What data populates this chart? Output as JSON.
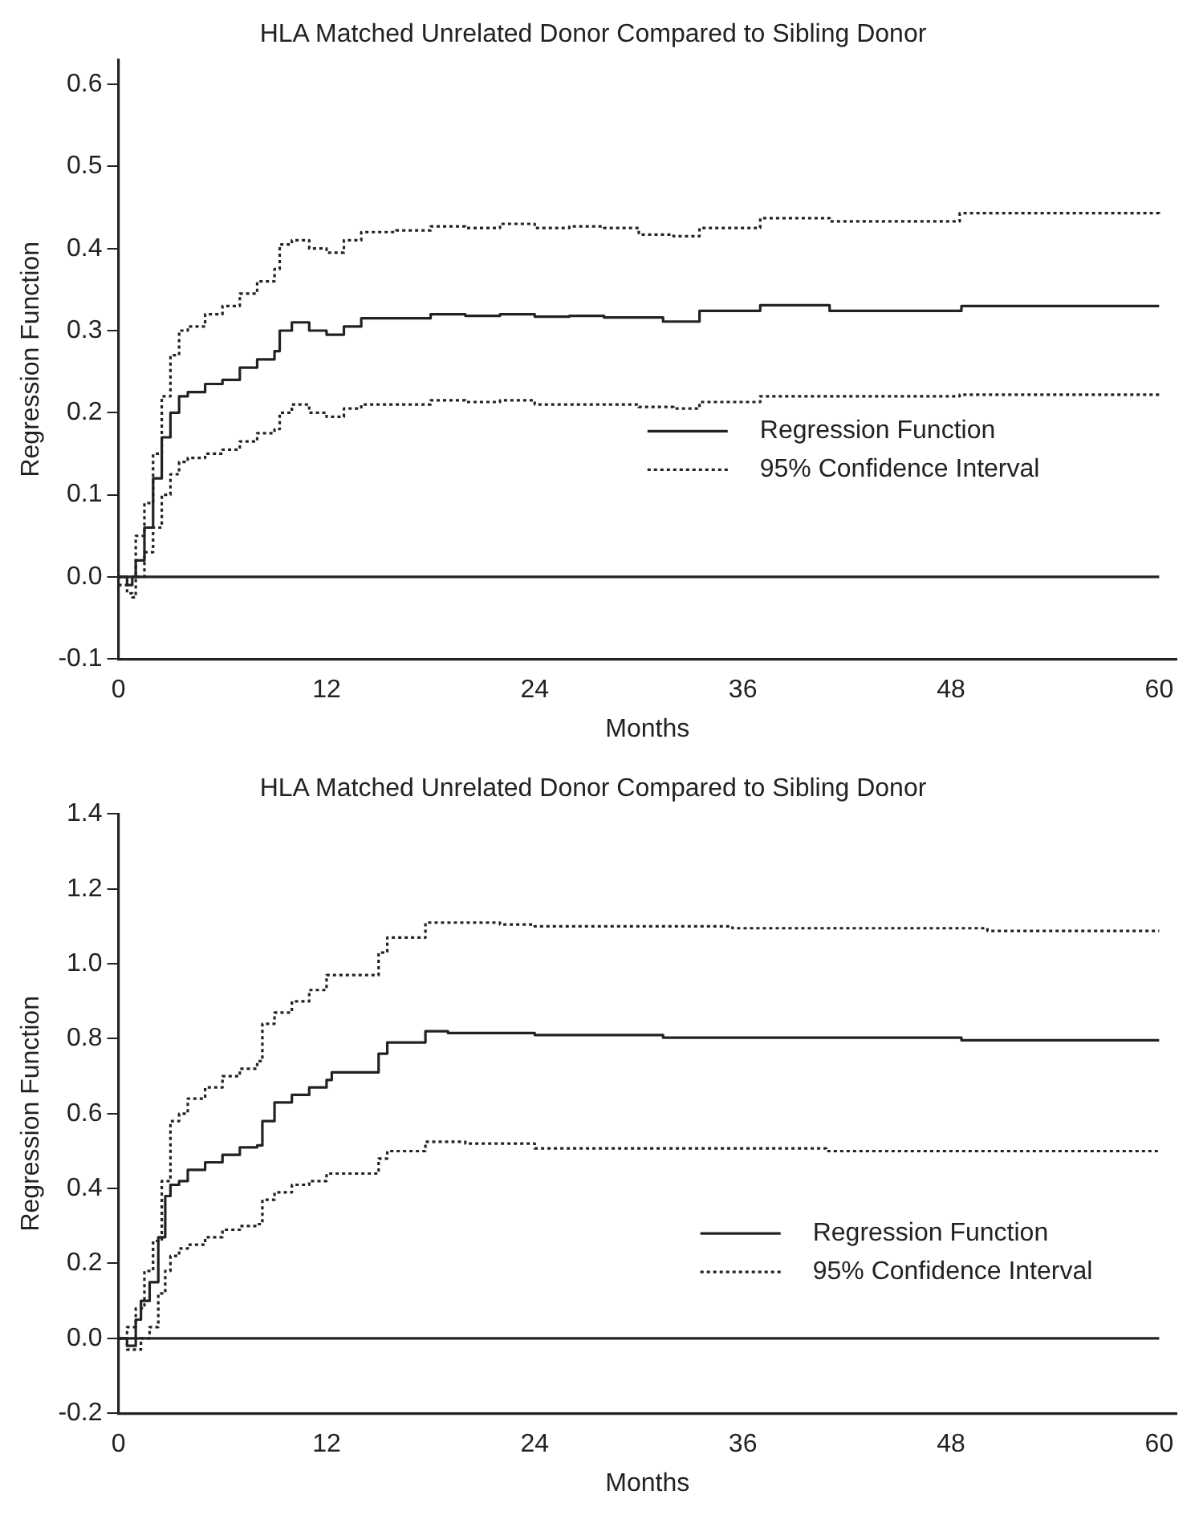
{
  "chart_data": [
    {
      "type": "step",
      "title": "HLA Matched Unrelated Donor Compared to Sibling Donor",
      "xlabel": "Months",
      "ylabel": "Regression Function",
      "xlim": [
        0,
        61
      ],
      "xticks": [
        0,
        12,
        24,
        36,
        48,
        60
      ],
      "ylim": [
        -0.1,
        0.63
      ],
      "yticks": [
        {
          "value": -0.1,
          "label": "-0.1"
        },
        {
          "value": 0,
          "label": "0.0"
        },
        0.1,
        0.2,
        0.3,
        0.4,
        0.5,
        0.6
      ],
      "grid": false,
      "legend": "right",
      "marker": "none",
      "ref_lines": [
        {
          "axis": "y",
          "value": 0,
          "color": "#222222",
          "line_style": "solid"
        }
      ],
      "series": [
        {
          "name": "Regression Function",
          "color": "#222222",
          "line_style": "solid",
          "x": [
            0,
            0.3,
            0.5,
            0.8,
            1,
            1.5,
            2,
            2.5,
            3,
            3.5,
            4,
            5,
            6,
            7,
            8,
            9,
            9.3,
            10,
            11,
            12,
            13,
            14,
            16,
            18,
            20,
            22,
            24,
            26,
            28,
            31.4,
            33.5,
            37,
            41,
            48.6,
            60
          ],
          "values": [
            0,
            0,
            -0.01,
            0,
            0.02,
            0.06,
            0.12,
            0.17,
            0.2,
            0.22,
            0.225,
            0.235,
            0.24,
            0.255,
            0.265,
            0.275,
            0.3,
            0.31,
            0.3,
            0.295,
            0.305,
            0.315,
            0.315,
            0.32,
            0.318,
            0.32,
            0.317,
            0.318,
            0.316,
            0.311,
            0.324,
            0.331,
            0.324,
            0.33,
            0.33
          ]
        },
        {
          "name": "95% Confidence Interval",
          "color": "#222222",
          "line_style": "dotted",
          "x": [
            0,
            1,
            1.5,
            2,
            2.5,
            3,
            3.5,
            4,
            5,
            6,
            7,
            8,
            9,
            9.3,
            10,
            11,
            12,
            13,
            14,
            16,
            18,
            20,
            22,
            24,
            26,
            28,
            30,
            32,
            33.5,
            37,
            41,
            48.5,
            60
          ],
          "values": [
            0,
            0.05,
            0.09,
            0.15,
            0.22,
            0.27,
            0.3,
            0.305,
            0.32,
            0.33,
            0.345,
            0.36,
            0.375,
            0.405,
            0.41,
            0.4,
            0.395,
            0.41,
            0.42,
            0.422,
            0.427,
            0.425,
            0.43,
            0.425,
            0.427,
            0.425,
            0.417,
            0.415,
            0.425,
            0.437,
            0.433,
            0.443,
            0.44
          ]
        },
        {
          "color": "#222222",
          "line_style": "dotted",
          "x": [
            0,
            0.5,
            0.8,
            1,
            1.5,
            2,
            2.5,
            3,
            3.5,
            4,
            5,
            6,
            7,
            8,
            9,
            9.3,
            10,
            11,
            12,
            13,
            14,
            16,
            18,
            20,
            22,
            24,
            28,
            30,
            32,
            33.5,
            37,
            48.5,
            60
          ],
          "values": [
            -0.01,
            -0.02,
            -0.025,
            0,
            0.03,
            0.06,
            0.1,
            0.125,
            0.14,
            0.145,
            0.15,
            0.155,
            0.165,
            0.175,
            0.18,
            0.2,
            0.21,
            0.2,
            0.195,
            0.205,
            0.21,
            0.21,
            0.215,
            0.213,
            0.215,
            0.21,
            0.21,
            0.207,
            0.205,
            0.213,
            0.22,
            0.222,
            0.22
          ]
        }
      ]
    },
    {
      "type": "step",
      "title": "HLA Matched Unrelated Donor Compared to Sibling Donor",
      "xlabel": "Months",
      "ylabel": "Regression Function",
      "xlim": [
        0,
        61
      ],
      "xticks": [
        0,
        12,
        24,
        36,
        48,
        60
      ],
      "ylim": [
        -0.2,
        1.4
      ],
      "yticks": [
        {
          "value": -0.2,
          "label": "-0.2"
        },
        {
          "value": 0,
          "label": "0.0"
        },
        0.2,
        0.4,
        0.6,
        0.8,
        {
          "value": 1,
          "label": "1.0"
        },
        1.2,
        1.4
      ],
      "grid": false,
      "legend": "bottom right",
      "marker": "none",
      "ref_lines": [
        {
          "axis": "y",
          "value": 0,
          "color": "#222222",
          "line_style": "solid"
        }
      ],
      "series": [
        {
          "name": "Regression Function",
          "color": "#222222",
          "line_style": "solid",
          "x": [
            0,
            0.5,
            1,
            1.3,
            1.8,
            2.3,
            2.7,
            3,
            3.5,
            4,
            5,
            6,
            7,
            8,
            8.3,
            9,
            10,
            11,
            12,
            12.3,
            15,
            15.5,
            17.7,
            19,
            24,
            31.4,
            48.6,
            60
          ],
          "values": [
            0,
            -0.02,
            0.05,
            0.1,
            0.15,
            0.27,
            0.38,
            0.41,
            0.42,
            0.45,
            0.47,
            0.49,
            0.51,
            0.515,
            0.58,
            0.63,
            0.65,
            0.67,
            0.69,
            0.71,
            0.76,
            0.79,
            0.82,
            0.815,
            0.81,
            0.803,
            0.796,
            0.796
          ]
        },
        {
          "name": "95% Confidence Interval",
          "color": "#222222",
          "line_style": "dotted",
          "x": [
            0,
            0.5,
            1,
            1.5,
            2,
            2.5,
            3,
            3.5,
            4,
            5,
            6,
            7,
            8,
            8.3,
            9,
            10,
            11,
            12,
            15,
            15.5,
            17.7,
            22,
            24,
            35.4,
            50.1,
            60
          ],
          "values": [
            0,
            0.03,
            0.08,
            0.18,
            0.26,
            0.42,
            0.58,
            0.6,
            0.64,
            0.67,
            0.7,
            0.72,
            0.74,
            0.84,
            0.87,
            0.9,
            0.93,
            0.97,
            1.03,
            1.07,
            1.11,
            1.105,
            1.1,
            1.095,
            1.088,
            1.088
          ]
        },
        {
          "color": "#222222",
          "line_style": "dotted",
          "x": [
            0,
            0.5,
            1,
            1.3,
            1.8,
            2.3,
            2.7,
            3,
            3.5,
            4,
            5,
            6,
            7,
            8,
            8.3,
            9,
            10,
            11,
            12,
            15,
            15.5,
            17.7,
            20,
            24,
            40.8,
            60
          ],
          "values": [
            0,
            -0.03,
            -0.03,
            0,
            0.03,
            0.12,
            0.18,
            0.22,
            0.24,
            0.25,
            0.27,
            0.29,
            0.3,
            0.305,
            0.37,
            0.39,
            0.41,
            0.42,
            0.44,
            0.48,
            0.5,
            0.525,
            0.52,
            0.507,
            0.5,
            0.5
          ]
        }
      ]
    }
  ]
}
